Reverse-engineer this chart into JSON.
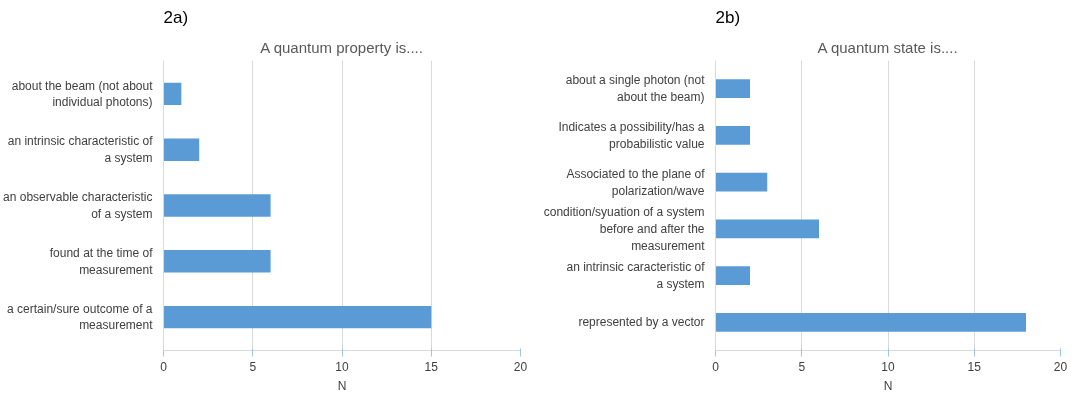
{
  "chart_data": [
    {
      "type": "bar",
      "orientation": "horizontal",
      "title": "A quantum property is....",
      "xlabel": "N",
      "annotations": [
        "2a)"
      ],
      "categories": [
        "about the beam (not about individual photons)",
        "an intrinsic characteristic of a system",
        "an observable characteristic of a system",
        "found at the time of measurement",
        "a certain/sure outcome of a measurement"
      ],
      "values": [
        1,
        2,
        6,
        6,
        15
      ],
      "color": "#5b9bd5",
      "xlim": [
        0,
        20
      ],
      "xticks": [
        0,
        5,
        10,
        15,
        20
      ],
      "grid": "x"
    },
    {
      "type": "bar",
      "orientation": "horizontal",
      "title": "A quantum state is....",
      "xlabel": "N",
      "annotations": [
        "2b)"
      ],
      "categories": [
        "about a single photon (not about the beam)",
        "Indicates a possibility/has a probabilistic value",
        "Associated to the plane of polarization/wave",
        "condition/syuation of a system before and after the measurement",
        "an intrinsic caracteristic of a system",
        "represented by a vector"
      ],
      "values": [
        2,
        2,
        3,
        6,
        2,
        18
      ],
      "color": "#5b9bd5",
      "xlim": [
        0,
        20
      ],
      "xticks": [
        0,
        5,
        10,
        15,
        20
      ],
      "grid": "x"
    }
  ]
}
